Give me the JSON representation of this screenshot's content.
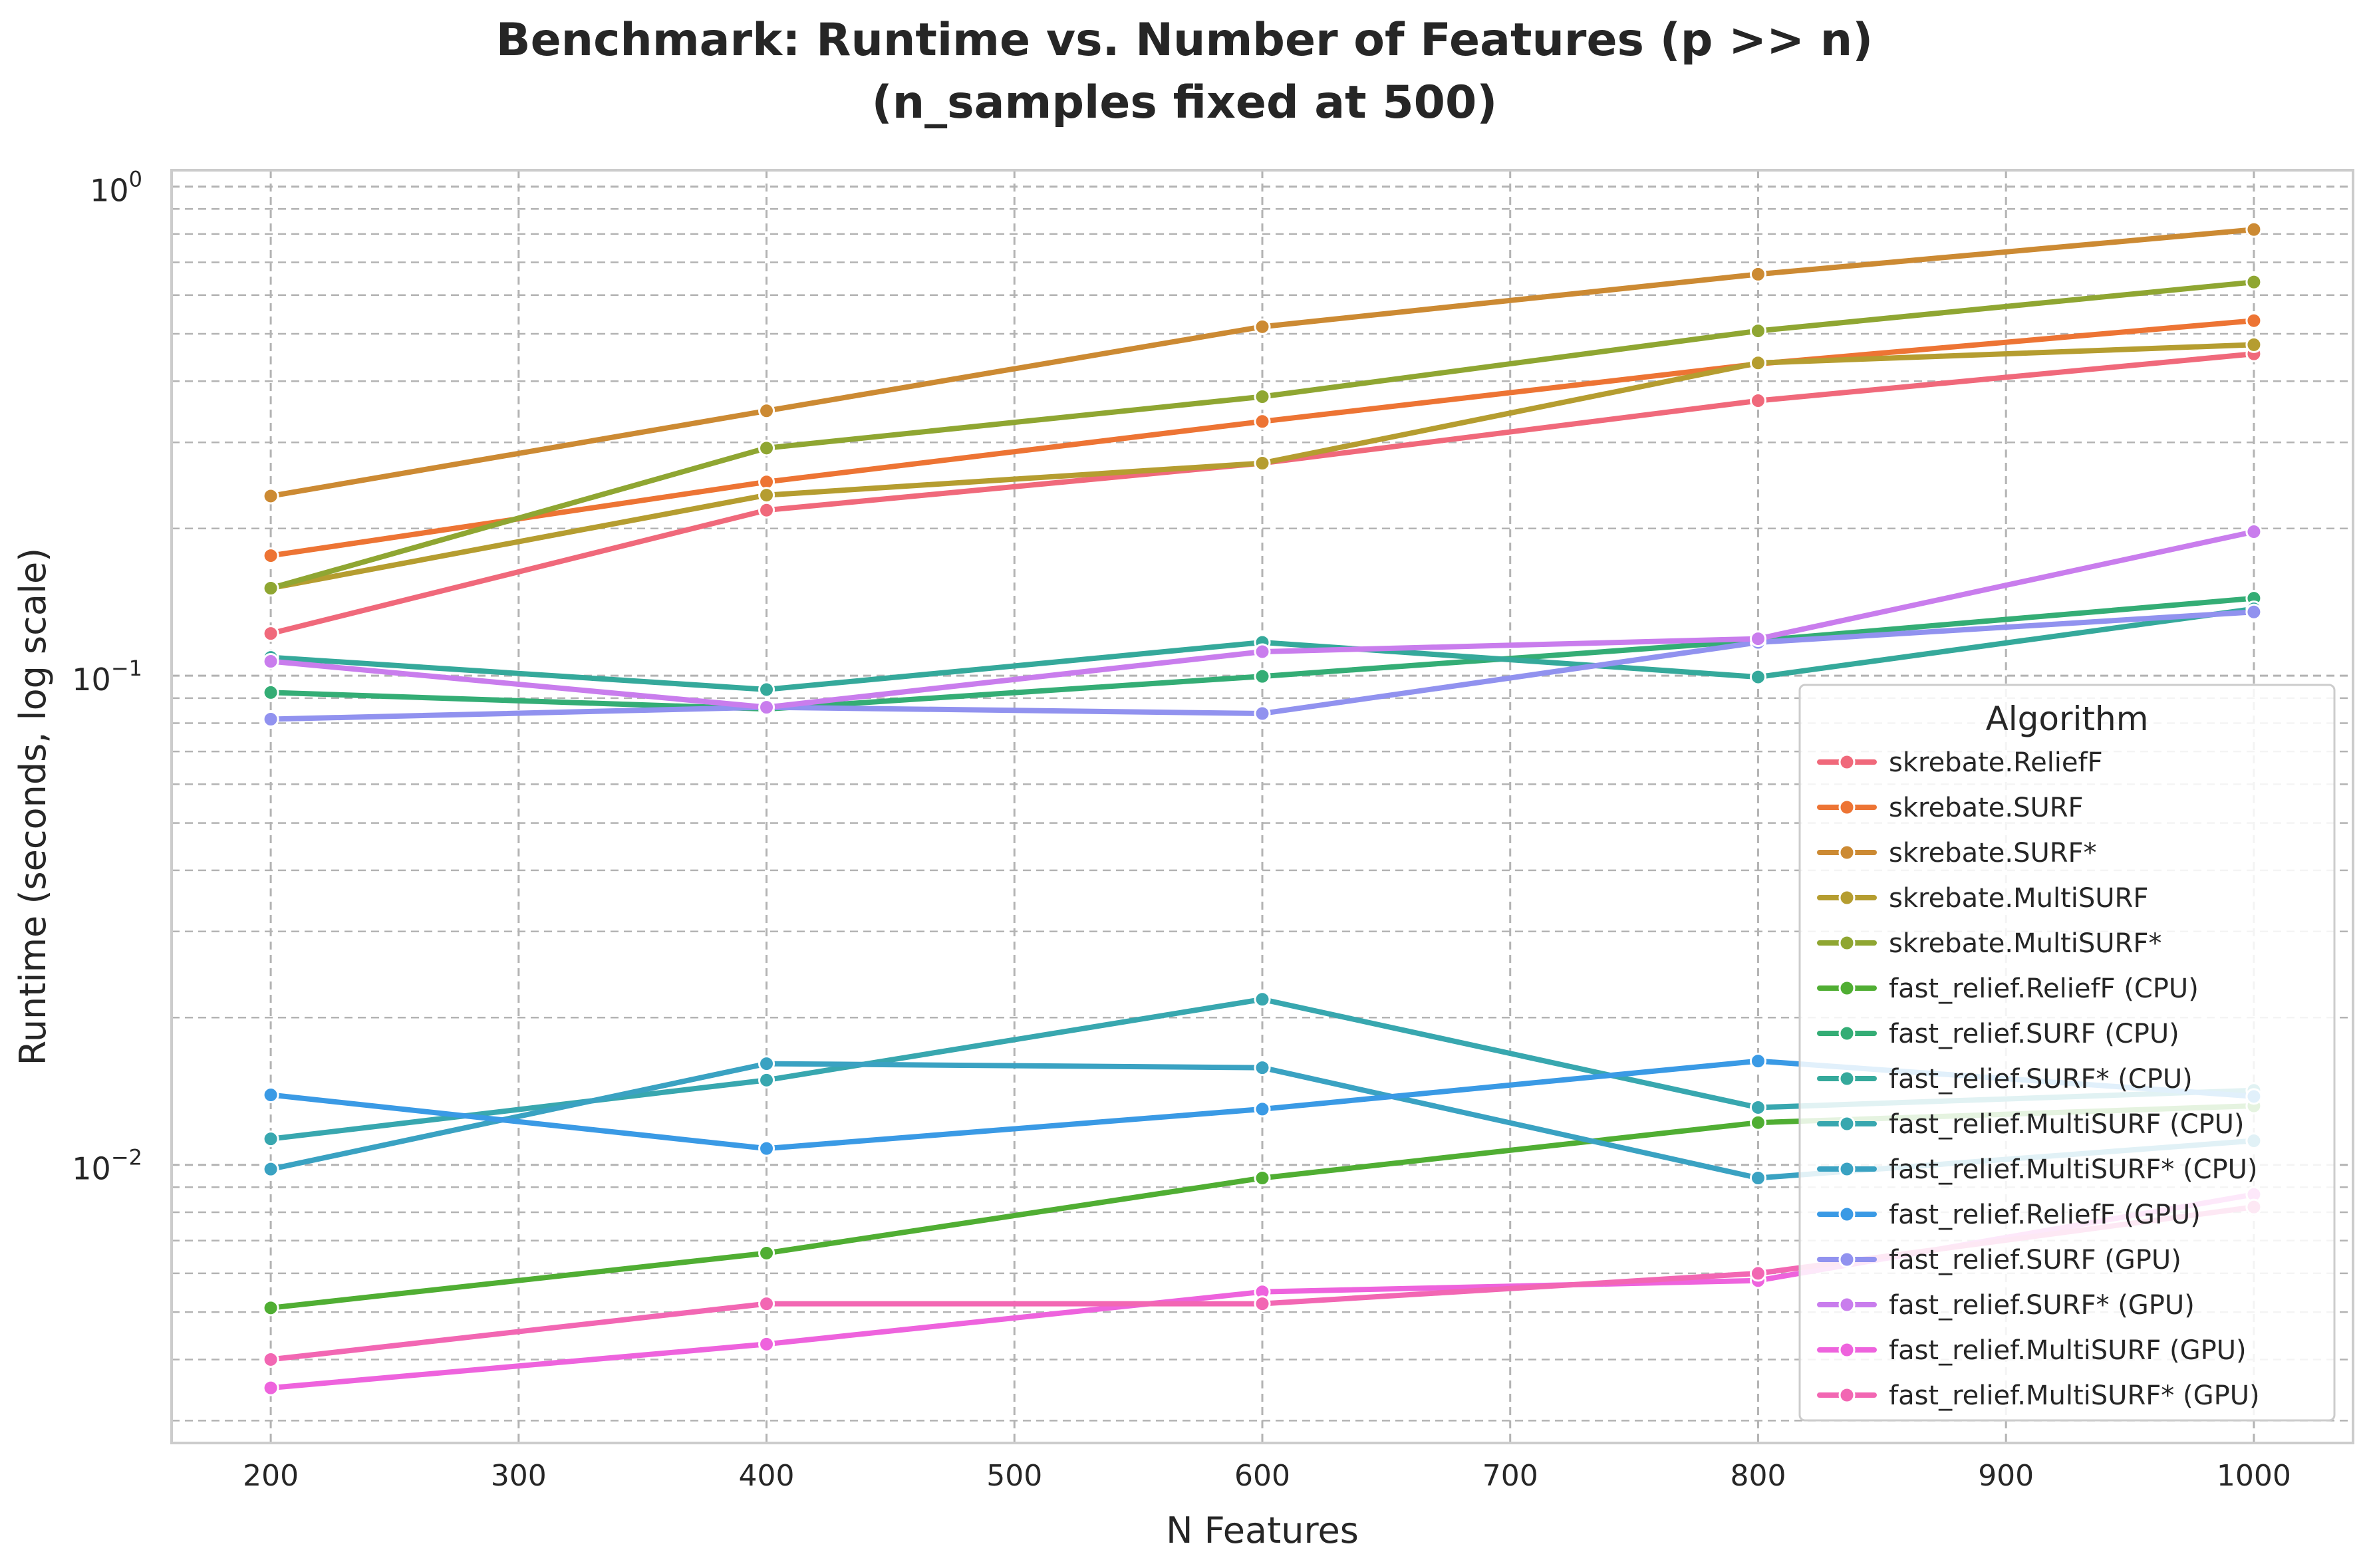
{
  "chart_data": {
    "type": "line",
    "title": "Benchmark: Runtime vs. Number of Features (p >> n)",
    "subtitle": "(n_samples fixed at 500)",
    "xlabel": "N Features",
    "ylabel": "Runtime (seconds, log scale)",
    "xlim": [
      160,
      1040
    ],
    "ylim": [
      0.0027,
      1.08
    ],
    "yscale": "log",
    "x_ticks": [
      200,
      300,
      400,
      500,
      600,
      700,
      800,
      900,
      1000
    ],
    "x_tick_labels": [
      "200",
      "300",
      "400",
      "500",
      "600",
      "700",
      "800",
      "900",
      "1000"
    ],
    "y_major_ticks": [
      0.01,
      0.1,
      1
    ],
    "y_tick_labels": [
      {
        "base": "10",
        "exp": "−2"
      },
      {
        "base": "10",
        "exp": "−1"
      },
      {
        "base": "10",
        "exp": "0"
      }
    ],
    "grid": true,
    "legend": {
      "title": "Algorithm",
      "placement": "lower right"
    },
    "x": [
      200,
      400,
      600,
      800,
      1000
    ],
    "series": [
      {
        "name": "skrebate.ReliefF",
        "color": "#f0697b",
        "values": [
          0.122,
          0.218,
          0.272,
          0.365,
          0.455
        ]
      },
      {
        "name": "skrebate.SURF",
        "color": "#ed7434",
        "values": [
          0.176,
          0.249,
          0.331,
          0.434,
          0.532
        ]
      },
      {
        "name": "skrebate.SURF*",
        "color": "#cc8a33",
        "values": [
          0.233,
          0.348,
          0.517,
          0.662,
          0.817
        ]
      },
      {
        "name": "skrebate.MultiSURF",
        "color": "#b59d30",
        "values": [
          0.151,
          0.234,
          0.272,
          0.436,
          0.475
        ]
      },
      {
        "name": "skrebate.MultiSURF*",
        "color": "#8fa632",
        "values": [
          0.151,
          0.292,
          0.372,
          0.507,
          0.638
        ]
      },
      {
        "name": "fast_relief.ReliefF (CPU)",
        "color": "#50ae33",
        "values": [
          0.0051,
          0.0066,
          0.0094,
          0.0122,
          0.0132
        ]
      },
      {
        "name": "fast_relief.SURF (CPU)",
        "color": "#34ad75",
        "values": [
          0.0924,
          0.0855,
          0.0997,
          0.118,
          0.144
        ]
      },
      {
        "name": "fast_relief.SURF* (CPU)",
        "color": "#35a99b",
        "values": [
          0.109,
          0.0937,
          0.117,
          0.0994,
          0.137
        ]
      },
      {
        "name": "fast_relief.MultiSURF (CPU)",
        "color": "#38a7af",
        "values": [
          0.0113,
          0.0149,
          0.0218,
          0.0131,
          0.0142
        ]
      },
      {
        "name": "fast_relief.MultiSURF* (CPU)",
        "color": "#3aa2c2",
        "values": [
          0.0098,
          0.0161,
          0.0158,
          0.0094,
          0.0112
        ]
      },
      {
        "name": "fast_relief.ReliefF (GPU)",
        "color": "#3a9ae5",
        "values": [
          0.0139,
          0.0108,
          0.013,
          0.0163,
          0.0138
        ]
      },
      {
        "name": "fast_relief.SURF (GPU)",
        "color": "#9192ef",
        "values": [
          0.0815,
          0.0862,
          0.0837,
          0.117,
          0.135
        ]
      },
      {
        "name": "fast_relief.SURF* (GPU)",
        "color": "#c97ded",
        "values": [
          0.107,
          0.0862,
          0.112,
          0.119,
          0.197
        ]
      },
      {
        "name": "fast_relief.MultiSURF (GPU)",
        "color": "#ee63dd",
        "values": [
          0.0035,
          0.0043,
          0.0055,
          0.0058,
          0.0087
        ]
      },
      {
        "name": "fast_relief.MultiSURF* (GPU)",
        "color": "#f267b3",
        "values": [
          0.004,
          0.0052,
          0.0052,
          0.006,
          0.0082
        ]
      }
    ]
  }
}
